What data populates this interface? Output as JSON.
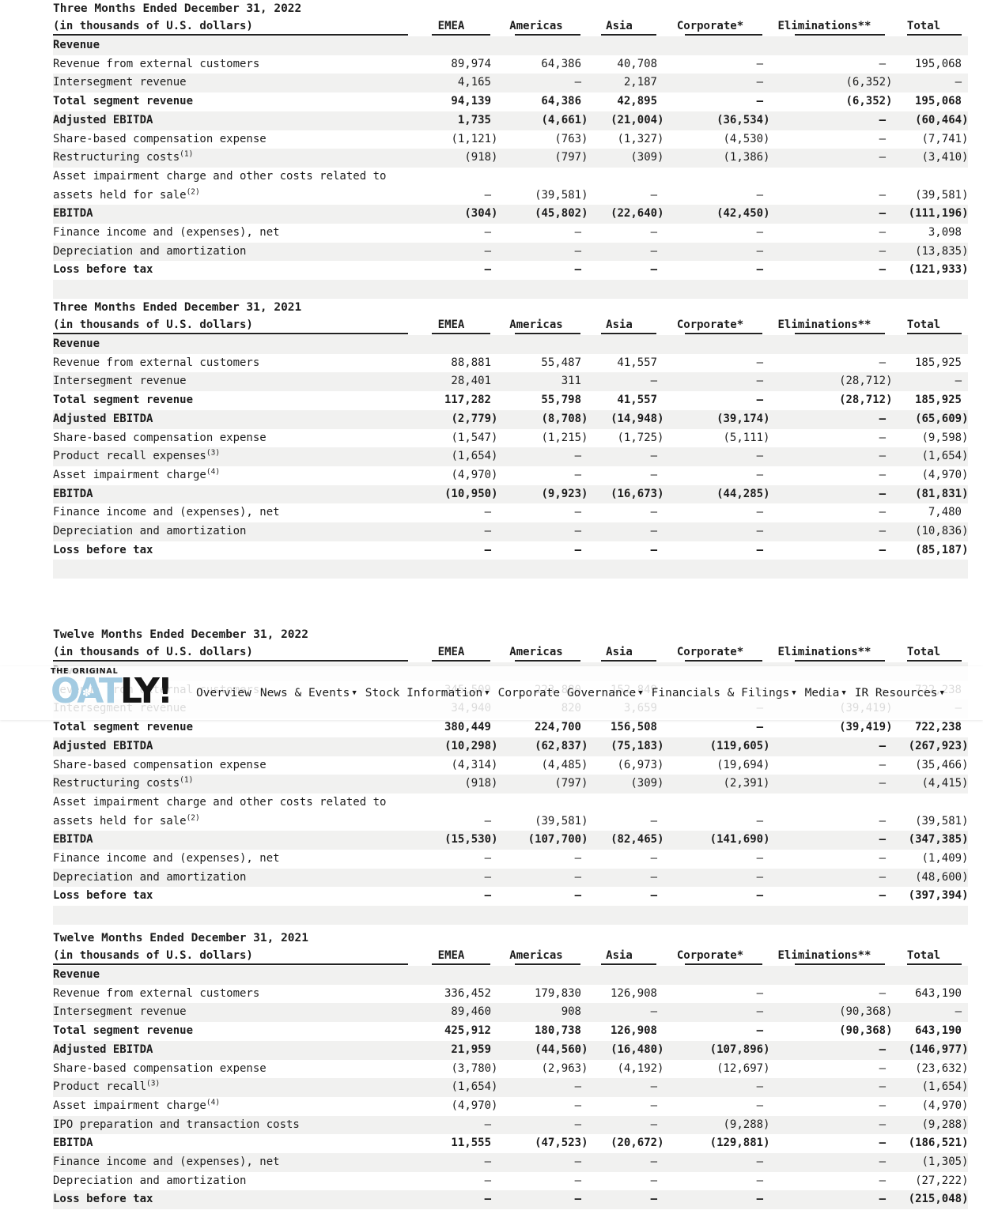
{
  "brand": {
    "tagline": "THE ORIGINAL",
    "logo_oat": "OAT",
    "logo_ly": "LY!",
    "flower_glyph": "✽"
  },
  "colors": {
    "stripe": "#f1f1f0",
    "ink": "#1c1c1c",
    "logo_blue": "#a3cbe2",
    "logo_black": "#161616",
    "page_bg": "#ffffff"
  },
  "nav": {
    "caret_glyph": "▼",
    "items": [
      {
        "label": "Overview",
        "dropdown": false
      },
      {
        "label": "News & Events",
        "dropdown": true
      },
      {
        "label": "Stock Information",
        "dropdown": true
      },
      {
        "label": "Corporate Governance",
        "dropdown": true
      },
      {
        "label": "Financials & Filings",
        "dropdown": true
      },
      {
        "label": "Media",
        "dropdown": true
      },
      {
        "label": "IR Resources",
        "dropdown": true
      }
    ]
  },
  "subtitle": "(in thousands of U.S. dollars)",
  "columns": [
    "EMEA",
    "Americas",
    "Asia",
    "Corporate*",
    "Eliminations**",
    "Total"
  ],
  "tables": [
    {
      "title": "Three Months Ended December 31, 2022",
      "rows": [
        {
          "label": "Revenue",
          "section": true,
          "bold": true
        },
        {
          "label": "Revenue from external customers",
          "values": [
            "89,974",
            "64,386",
            "40,708",
            "–",
            "–",
            "195,068"
          ]
        },
        {
          "label": "Intersegment revenue",
          "values": [
            "4,165",
            "–",
            "2,187",
            "–",
            "(6,352)",
            "–"
          ]
        },
        {
          "label": "Total segment revenue",
          "bold": true,
          "values": [
            "94,139",
            "64,386",
            "42,895",
            "–",
            "(6,352)",
            "195,068"
          ]
        },
        {
          "label": "Adjusted EBITDA",
          "bold": true,
          "values": [
            "1,735",
            "(4,661)",
            "(21,004)",
            "(36,534)",
            "–",
            "(60,464)"
          ]
        },
        {
          "label": "Share-based compensation expense",
          "values": [
            "(1,121)",
            "(763)",
            "(1,327)",
            "(4,530)",
            "–",
            "(7,741)"
          ]
        },
        {
          "label": "Restructuring costs",
          "sup": "(1)",
          "values": [
            "(918)",
            "(797)",
            "(309)",
            "(1,386)",
            "–",
            "(3,410)"
          ]
        },
        {
          "label": "Asset impairment charge and other costs related to",
          "label2": "assets held for sale",
          "sup2": "(2)",
          "values": [
            "–",
            "(39,581)",
            "–",
            "–",
            "–",
            "(39,581)"
          ]
        },
        {
          "label": "EBITDA",
          "bold": true,
          "values": [
            "(304)",
            "(45,802)",
            "(22,640)",
            "(42,450)",
            "–",
            "(111,196)"
          ]
        },
        {
          "label": "Finance income and (expenses), net",
          "values": [
            "–",
            "–",
            "–",
            "–",
            "–",
            "3,098"
          ]
        },
        {
          "label": "Depreciation and amortization",
          "values": [
            "–",
            "–",
            "–",
            "–",
            "–",
            "(13,835)"
          ]
        },
        {
          "label": "Loss before tax",
          "bold": true,
          "values": [
            "–",
            "–",
            "–",
            "–",
            "–",
            "(121,933)"
          ]
        }
      ]
    },
    {
      "title": "Three Months Ended December 31, 2021",
      "rows": [
        {
          "label": "Revenue",
          "section": true,
          "bold": true
        },
        {
          "label": "Revenue from external customers",
          "values": [
            "88,881",
            "55,487",
            "41,557",
            "–",
            "–",
            "185,925"
          ]
        },
        {
          "label": "Intersegment revenue",
          "values": [
            "28,401",
            "311",
            "–",
            "–",
            "(28,712)",
            "–"
          ]
        },
        {
          "label": "Total segment revenue",
          "bold": true,
          "values": [
            "117,282",
            "55,798",
            "41,557",
            "–",
            "(28,712)",
            "185,925"
          ]
        },
        {
          "label": "Adjusted EBITDA",
          "bold": true,
          "values": [
            "(2,779)",
            "(8,708)",
            "(14,948)",
            "(39,174)",
            "–",
            "(65,609)"
          ]
        },
        {
          "label": "Share-based compensation expense",
          "values": [
            "(1,547)",
            "(1,215)",
            "(1,725)",
            "(5,111)",
            "–",
            "(9,598)"
          ]
        },
        {
          "label": "Product recall expenses",
          "sup": "(3)",
          "values": [
            "(1,654)",
            "–",
            "–",
            "–",
            "–",
            "(1,654)"
          ]
        },
        {
          "label": "Asset impairment charge",
          "sup": "(4)",
          "values": [
            "(4,970)",
            "–",
            "–",
            "–",
            "–",
            "(4,970)"
          ]
        },
        {
          "label": "EBITDA",
          "bold": true,
          "values": [
            "(10,950)",
            "(9,923)",
            "(16,673)",
            "(44,285)",
            "–",
            "(81,831)"
          ]
        },
        {
          "label": "Finance income and (expenses), net",
          "values": [
            "–",
            "–",
            "–",
            "–",
            "–",
            "7,480"
          ]
        },
        {
          "label": "Depreciation and amortization",
          "values": [
            "–",
            "–",
            "–",
            "–",
            "–",
            "(10,836)"
          ]
        },
        {
          "label": "Loss before tax",
          "bold": true,
          "values": [
            "–",
            "–",
            "–",
            "–",
            "–",
            "(85,187)"
          ]
        }
      ]
    },
    {
      "title": "Twelve Months Ended December 31, 2022",
      "rows": [
        {
          "label": "Revenue",
          "section": true,
          "bold": true
        },
        {
          "label": "Revenue from external customers",
          "values": [
            "345,509",
            "223,880",
            "152,849",
            "–",
            "–",
            "722,238"
          ]
        },
        {
          "label": "Intersegment revenue",
          "values": [
            "34,940",
            "820",
            "3,659",
            "–",
            "(39,419)",
            "–"
          ]
        },
        {
          "label": "Total segment revenue",
          "bold": true,
          "values": [
            "380,449",
            "224,700",
            "156,508",
            "–",
            "(39,419)",
            "722,238"
          ]
        },
        {
          "label": "Adjusted EBITDA",
          "bold": true,
          "values": [
            "(10,298)",
            "(62,837)",
            "(75,183)",
            "(119,605)",
            "–",
            "(267,923)"
          ]
        },
        {
          "label": "Share-based compensation expense",
          "values": [
            "(4,314)",
            "(4,485)",
            "(6,973)",
            "(19,694)",
            "–",
            "(35,466)"
          ]
        },
        {
          "label": "Restructuring costs",
          "sup": "(1)",
          "values": [
            "(918)",
            "(797)",
            "(309)",
            "(2,391)",
            "–",
            "(4,415)"
          ]
        },
        {
          "label": "Asset impairment charge and other costs related to",
          "label2": "assets held for sale",
          "sup2": "(2)",
          "values": [
            "–",
            "(39,581)",
            "–",
            "–",
            "–",
            "(39,581)"
          ]
        },
        {
          "label": "EBITDA",
          "bold": true,
          "values": [
            "(15,530)",
            "(107,700)",
            "(82,465)",
            "(141,690)",
            "–",
            "(347,385)"
          ]
        },
        {
          "label": "Finance income and (expenses), net",
          "values": [
            "–",
            "–",
            "–",
            "–",
            "–",
            "(1,409)"
          ]
        },
        {
          "label": "Depreciation and amortization",
          "values": [
            "–",
            "–",
            "–",
            "–",
            "–",
            "(48,600)"
          ]
        },
        {
          "label": "Loss before tax",
          "bold": true,
          "values": [
            "–",
            "–",
            "–",
            "–",
            "–",
            "(397,394)"
          ]
        }
      ]
    },
    {
      "title": "Twelve Months Ended December 31, 2021",
      "rows": [
        {
          "label": "Revenue",
          "section": true,
          "bold": true
        },
        {
          "label": "Revenue from external customers",
          "values": [
            "336,452",
            "179,830",
            "126,908",
            "–",
            "–",
            "643,190"
          ]
        },
        {
          "label": "Intersegment revenue",
          "values": [
            "89,460",
            "908",
            "–",
            "–",
            "(90,368)",
            "–"
          ]
        },
        {
          "label": "Total segment revenue",
          "bold": true,
          "values": [
            "425,912",
            "180,738",
            "126,908",
            "–",
            "(90,368)",
            "643,190"
          ]
        },
        {
          "label": "Adjusted EBITDA",
          "bold": true,
          "values": [
            "21,959",
            "(44,560)",
            "(16,480)",
            "(107,896)",
            "–",
            "(146,977)"
          ]
        },
        {
          "label": "Share-based compensation expense",
          "values": [
            "(3,780)",
            "(2,963)",
            "(4,192)",
            "(12,697)",
            "–",
            "(23,632)"
          ]
        },
        {
          "label": "Product recall",
          "sup": "(3)",
          "values": [
            "(1,654)",
            "–",
            "–",
            "–",
            "–",
            "(1,654)"
          ]
        },
        {
          "label": "Asset impairment charge",
          "sup": "(4)",
          "values": [
            "(4,970)",
            "–",
            "–",
            "–",
            "–",
            "(4,970)"
          ]
        },
        {
          "label": "IPO preparation and transaction costs",
          "values": [
            "–",
            "–",
            "–",
            "(9,288)",
            "–",
            "(9,288)"
          ]
        },
        {
          "label": "EBITDA",
          "bold": true,
          "values": [
            "11,555",
            "(47,523)",
            "(20,672)",
            "(129,881)",
            "–",
            "(186,521)"
          ]
        },
        {
          "label": "Finance income and (expenses), net",
          "values": [
            "–",
            "–",
            "–",
            "–",
            "–",
            "(1,305)"
          ]
        },
        {
          "label": "Depreciation and amortization",
          "values": [
            "–",
            "–",
            "–",
            "–",
            "–",
            "(27,222)"
          ]
        },
        {
          "label": "Loss before tax",
          "bold": true,
          "values": [
            "–",
            "–",
            "–",
            "–",
            "–",
            "(215,048)"
          ]
        }
      ]
    }
  ]
}
